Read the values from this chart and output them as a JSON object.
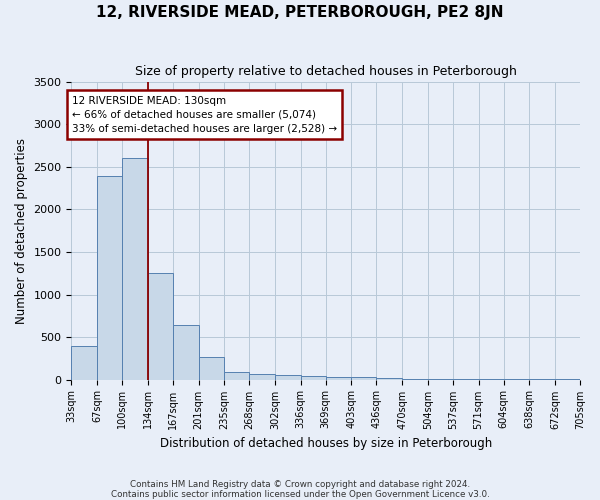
{
  "title": "12, RIVERSIDE MEAD, PETERBOROUGH, PE2 8JN",
  "subtitle": "Size of property relative to detached houses in Peterborough",
  "xlabel": "Distribution of detached houses by size in Peterborough",
  "ylabel": "Number of detached properties",
  "footer_line1": "Contains HM Land Registry data © Crown copyright and database right 2024.",
  "footer_line2": "Contains public sector information licensed under the Open Government Licence v3.0.",
  "annotation_title": "12 RIVERSIDE MEAD: 130sqm",
  "annotation_line1": "← 66% of detached houses are smaller (5,074)",
  "annotation_line2": "33% of semi-detached houses are larger (2,528) →",
  "property_size_sqm": 130,
  "bar_edges": [
    33,
    67,
    100,
    134,
    167,
    201,
    235,
    268,
    302,
    336,
    369,
    403,
    436,
    470,
    504,
    537,
    571,
    604,
    638,
    672,
    705
  ],
  "bar_heights": [
    390,
    2390,
    2600,
    1250,
    640,
    265,
    90,
    60,
    55,
    45,
    35,
    25,
    15,
    10,
    8,
    5,
    4,
    3,
    2,
    2
  ],
  "bar_color": "#c8d8e8",
  "bar_edge_color": "#5580b0",
  "vline_color": "#8b0000",
  "vline_x": 134,
  "annotation_bg": "white",
  "grid_color": "#b8c8d8",
  "background_color": "#e8eef8",
  "ylim": [
    0,
    3500
  ],
  "yticks": [
    0,
    500,
    1000,
    1500,
    2000,
    2500,
    3000,
    3500
  ]
}
